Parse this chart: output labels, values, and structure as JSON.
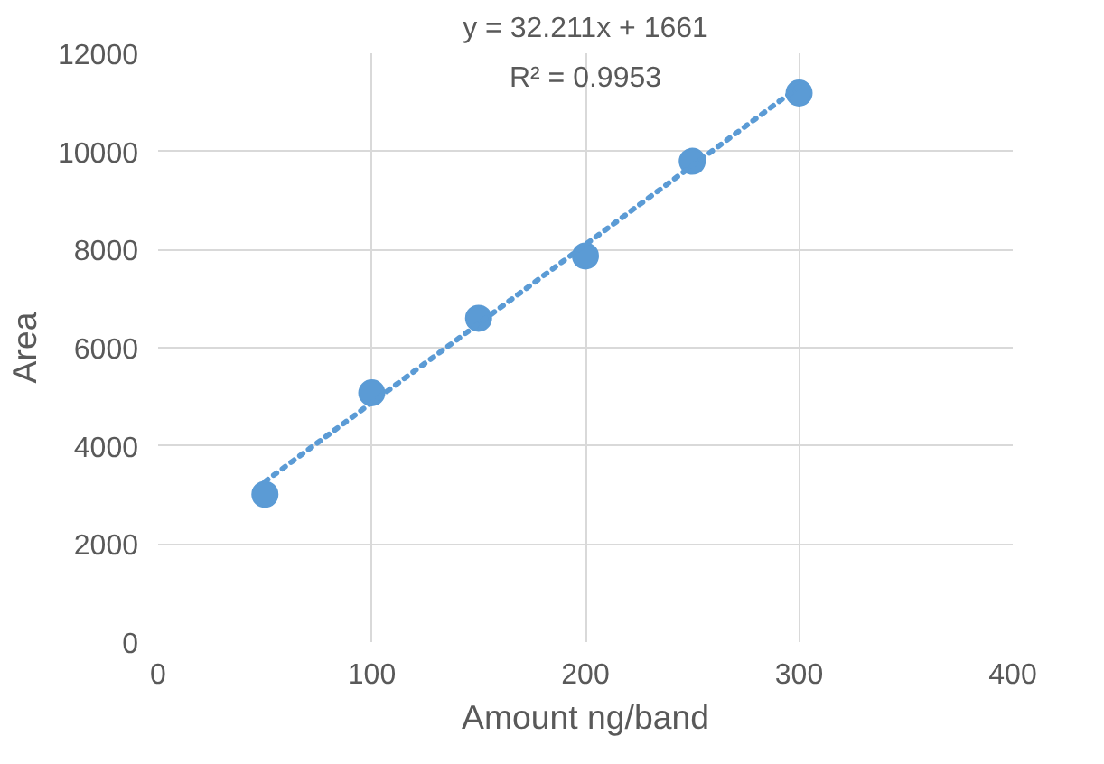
{
  "chart_data": {
    "type": "scatter",
    "xlabel": "Amount ng/band",
    "ylabel": "Area",
    "annotations": [
      "y = 32.211x + 1661",
      "R² = 0.9953"
    ],
    "xlim": [
      0,
      400
    ],
    "xticks": [
      0,
      100,
      200,
      300,
      400
    ],
    "ylim": [
      0,
      12000
    ],
    "yticks": [
      0,
      2000,
      4000,
      6000,
      8000,
      10000,
      12000
    ],
    "grid": true,
    "series": [
      {
        "color": "#5b9bd5",
        "marker": "circle",
        "x": [
          50,
          100,
          150,
          200,
          250,
          300
        ],
        "values": [
          3010,
          5080,
          6600,
          7870,
          9800,
          11190
        ]
      },
      {
        "type": "line",
        "color": "#5b9bd5",
        "marker": "none",
        "line_style": "dotted",
        "x": [
          50,
          300
        ],
        "values": [
          3270,
          11320
        ]
      }
    ]
  }
}
